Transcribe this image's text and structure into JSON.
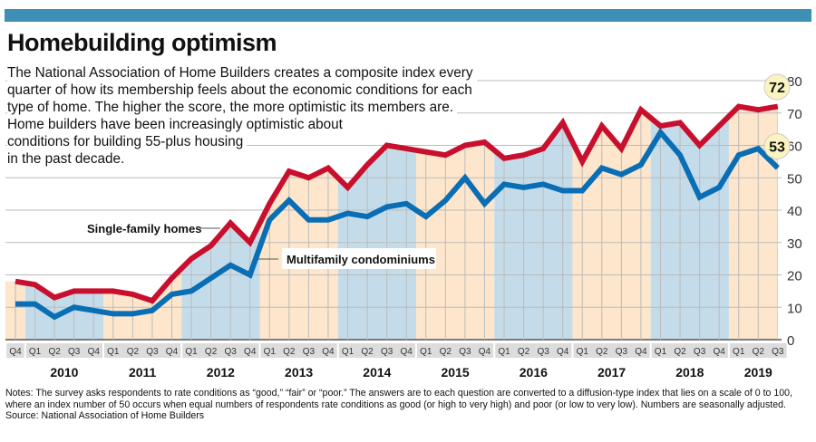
{
  "title": "Homebuilding optimism",
  "intro_lines": [
    "The National Association of Home Builders creates a composite index every",
    "quarter of how its membership feels about the economic conditions for each",
    "type of home. The higher the score, the more optimistic its members are.",
    "Home builders have been increasingly optimistic about",
    "conditions for building 55-plus housing",
    "in the past decade."
  ],
  "notes": "Notes: The survey asks respondents to rate conditions as “good,” “fair” or “poor.” The answers are to each question are converted to a diffusion-type index that lies on a scale of 0 to 100, where an index number of 50 occurs when equal numbers of respondents rate conditions as good (or high to very high) and poor (or low to very low). Numbers are seasonally adjusted.",
  "source": "Source: National Association of Home Builders",
  "colors": {
    "single": "#c8102e",
    "multi": "#0a6eb4",
    "band_blue": "#c4dcea",
    "band_beige": "#fde6cc",
    "topbar": "#3d8fb5",
    "callout": "#fbf4c0"
  },
  "chart_data": {
    "type": "line",
    "ylim": [
      0,
      80
    ],
    "yticks": [
      0,
      10,
      20,
      30,
      40,
      50,
      60,
      70,
      80
    ],
    "grid": true,
    "axis_side": "right",
    "quarters": [
      "Q4",
      "Q1",
      "Q2",
      "Q3",
      "Q4",
      "Q1",
      "Q2",
      "Q3",
      "Q4",
      "Q1",
      "Q2",
      "Q3",
      "Q4",
      "Q1",
      "Q2",
      "Q3",
      "Q4",
      "Q1",
      "Q2",
      "Q3",
      "Q4",
      "Q1",
      "Q2",
      "Q3",
      "Q4",
      "Q1",
      "Q2",
      "Q3",
      "Q4",
      "Q1",
      "Q2",
      "Q3",
      "Q4",
      "Q1",
      "Q2",
      "Q3",
      "Q4",
      "Q1",
      "Q2",
      "Q3"
    ],
    "years": [
      {
        "label": "",
        "start": 0,
        "count": 1
      },
      {
        "label": "2010",
        "start": 1,
        "count": 4
      },
      {
        "label": "2011",
        "start": 5,
        "count": 4
      },
      {
        "label": "2012",
        "start": 9,
        "count": 4
      },
      {
        "label": "2013",
        "start": 13,
        "count": 4
      },
      {
        "label": "2014",
        "start": 17,
        "count": 4
      },
      {
        "label": "2015",
        "start": 21,
        "count": 4
      },
      {
        "label": "2016",
        "start": 25,
        "count": 4
      },
      {
        "label": "2017",
        "start": 29,
        "count": 4
      },
      {
        "label": "2018",
        "start": 33,
        "count": 4
      },
      {
        "label": "2019",
        "start": 37,
        "count": 3
      }
    ],
    "series": [
      {
        "name": "Single-family homes",
        "values": [
          18,
          17,
          13,
          15,
          15,
          15,
          14,
          12,
          19,
          25,
          29,
          36,
          30,
          42,
          52,
          50,
          53,
          47,
          54,
          60,
          59,
          58,
          57,
          60,
          61,
          56,
          57,
          59,
          67,
          55,
          66,
          59,
          71,
          66,
          67,
          60,
          66,
          72,
          71,
          72
        ]
      },
      {
        "name": "Multifamily condominiums",
        "values": [
          11,
          11,
          7,
          10,
          9,
          8,
          8,
          9,
          14,
          15,
          19,
          23,
          20,
          37,
          43,
          37,
          37,
          39,
          38,
          41,
          42,
          38,
          43,
          50,
          42,
          48,
          47,
          48,
          46,
          46,
          53,
          51,
          54,
          64,
          57,
          44,
          47,
          57,
          59,
          53
        ]
      }
    ],
    "callouts": [
      "72",
      "53"
    ]
  }
}
